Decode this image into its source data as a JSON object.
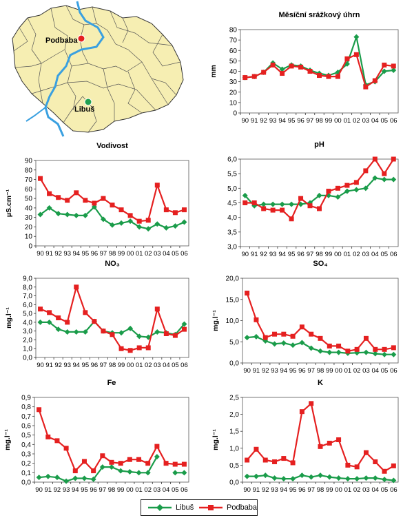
{
  "map": {
    "labels": [
      {
        "key": "podbaba",
        "text": "Podbaba",
        "color": "#e52020"
      },
      {
        "key": "libus",
        "text": "Libuš",
        "color": "#20a050"
      }
    ],
    "region_fill": "#f6eeb2",
    "river_color": "#3aa0e0"
  },
  "legend": {
    "items": [
      {
        "label": "Libuš",
        "color": "#1a9c4a",
        "marker": "diamond"
      },
      {
        "label": "Podbaba",
        "color": "#e52020",
        "marker": "square"
      }
    ]
  },
  "chart_data": [
    {
      "id": "srazky",
      "type": "line",
      "title": "Měsíční srážkový úhrn",
      "ylabel": "mm",
      "ylim": [
        0,
        80
      ],
      "yticks": [
        "0",
        "10",
        "20",
        "30",
        "40",
        "50",
        "60",
        "70",
        "80"
      ],
      "x": [
        "90",
        "91",
        "92",
        "93",
        "94",
        "95",
        "96",
        "97",
        "98",
        "99",
        "00",
        "01",
        "02",
        "03",
        "04",
        "05",
        "06"
      ],
      "series": [
        {
          "name": "Libuš",
          "values": [
            34,
            35,
            39,
            48,
            42,
            46,
            45,
            41,
            38,
            36,
            39,
            47,
            73,
            27,
            30,
            40,
            41
          ]
        },
        {
          "name": "Podbaba",
          "values": [
            34,
            35,
            39,
            46,
            38,
            45,
            44,
            40,
            36,
            35,
            35,
            52,
            56,
            25,
            31,
            46,
            45
          ]
        }
      ]
    },
    {
      "id": "vodivost",
      "type": "line",
      "title": "Vodivost",
      "ylabel": "µS.cm⁻¹",
      "ylim": [
        0,
        90
      ],
      "yticks": [
        "0",
        "10",
        "20",
        "30",
        "40",
        "50",
        "60",
        "70",
        "80",
        "90"
      ],
      "x": [
        "90",
        "91",
        "92",
        "93",
        "94",
        "95",
        "96",
        "97",
        "98",
        "99",
        "00",
        "01",
        "02",
        "03",
        "04",
        "05",
        "06"
      ],
      "series": [
        {
          "name": "Libuš",
          "values": [
            33,
            40,
            34,
            33,
            32,
            32,
            41,
            28,
            22,
            24,
            26,
            20,
            18,
            23,
            19,
            21,
            25
          ]
        },
        {
          "name": "Podbaba",
          "values": [
            71,
            55,
            51,
            48,
            56,
            48,
            45,
            50,
            43,
            38,
            32,
            26,
            27,
            64,
            38,
            35,
            38
          ]
        }
      ]
    },
    {
      "id": "ph",
      "type": "line",
      "title": "pH",
      "ylabel": "",
      "ylim": [
        3,
        6
      ],
      "yticks": [
        "3,0",
        "3,5",
        "4,0",
        "4,5",
        "5,0",
        "5,5",
        "6,0"
      ],
      "x": [
        "90",
        "91",
        "92",
        "93",
        "94",
        "95",
        "96",
        "97",
        "98",
        "99",
        "00",
        "01",
        "02",
        "03",
        "04",
        "05",
        "06"
      ],
      "series": [
        {
          "name": "Libuš",
          "values": [
            4.75,
            4.4,
            4.45,
            4.45,
            4.45,
            4.45,
            4.45,
            4.5,
            4.75,
            4.75,
            4.7,
            4.9,
            4.95,
            5.0,
            5.35,
            5.3,
            5.3
          ]
        },
        {
          "name": "Podbaba",
          "values": [
            4.5,
            4.5,
            4.3,
            4.25,
            4.25,
            3.95,
            4.65,
            4.4,
            4.3,
            4.9,
            5.0,
            5.1,
            5.2,
            5.6,
            6.0,
            5.5,
            6.0
          ]
        }
      ]
    },
    {
      "id": "no3",
      "type": "line",
      "title": "NO₃",
      "ylabel": "mg.l⁻¹",
      "ylim": [
        0,
        9
      ],
      "yticks": [
        "0,0",
        "1,0",
        "2,0",
        "3,0",
        "4,0",
        "5,0",
        "6,0",
        "7,0",
        "8,0",
        "9,0"
      ],
      "x": [
        "90",
        "91",
        "92",
        "93",
        "94",
        "95",
        "96",
        "97",
        "98",
        "99",
        "00",
        "01",
        "02",
        "03",
        "04",
        "05",
        "06"
      ],
      "series": [
        {
          "name": "Libuš",
          "values": [
            4.0,
            4.0,
            3.2,
            2.9,
            2.9,
            2.9,
            4.1,
            3.0,
            2.8,
            2.8,
            3.3,
            2.4,
            2.3,
            2.9,
            2.8,
            2.6,
            3.8
          ]
        },
        {
          "name": "Podbaba",
          "values": [
            5.5,
            5.1,
            4.5,
            4.0,
            8.0,
            5.1,
            4.1,
            3.0,
            2.6,
            1.0,
            0.8,
            1.1,
            1.1,
            5.5,
            2.7,
            2.5,
            3.2
          ]
        }
      ]
    },
    {
      "id": "so4",
      "type": "line",
      "title": "SO₄",
      "ylabel": "mg.l⁻¹",
      "ylim": [
        0,
        20
      ],
      "yticks": [
        "0,0",
        "5,0",
        "10,0",
        "15,0",
        "20,0"
      ],
      "x": [
        "90",
        "91",
        "92",
        "93",
        "94",
        "95",
        "96",
        "97",
        "98",
        "99",
        "00",
        "01",
        "02",
        "03",
        "04",
        "05",
        "06"
      ],
      "series": [
        {
          "name": "Libuš",
          "values": [
            6.0,
            6.2,
            5.2,
            4.5,
            4.7,
            4.2,
            4.8,
            3.5,
            2.8,
            2.5,
            2.5,
            2.3,
            2.4,
            2.5,
            2.2,
            2.0,
            2.0
          ]
        },
        {
          "name": "Podbaba",
          "values": [
            16.5,
            10.2,
            6.0,
            6.8,
            6.8,
            6.3,
            8.5,
            6.8,
            5.8,
            4.0,
            4.0,
            2.8,
            3.2,
            5.8,
            3.2,
            3.2,
            3.6
          ]
        }
      ]
    },
    {
      "id": "fe",
      "type": "line",
      "title": "Fe",
      "ylabel": "mg.l⁻¹",
      "ylim": [
        0,
        0.9
      ],
      "yticks": [
        "0,0",
        "0,1",
        "0,2",
        "0,3",
        "0,4",
        "0,5",
        "0,6",
        "0,7",
        "0,8",
        "0,9"
      ],
      "x": [
        "90",
        "91",
        "92",
        "93",
        "94",
        "95",
        "96",
        "97",
        "98",
        "99",
        "00",
        "01",
        "02",
        "03",
        "04",
        "05",
        "06"
      ],
      "series": [
        {
          "name": "Libuš",
          "values": [
            0.05,
            0.06,
            0.05,
            0.01,
            0.04,
            0.04,
            0.03,
            0.16,
            0.16,
            0.12,
            0.11,
            0.1,
            0.1,
            0.27,
            null,
            0.1,
            0.1
          ]
        },
        {
          "name": "Podbaba",
          "values": [
            0.77,
            0.48,
            0.44,
            0.36,
            0.12,
            0.22,
            0.12,
            0.28,
            0.21,
            0.2,
            0.24,
            0.24,
            0.2,
            0.38,
            0.2,
            0.19,
            0.19
          ]
        }
      ]
    },
    {
      "id": "k",
      "type": "line",
      "title": "K",
      "ylabel": "mg.l⁻¹",
      "ylim": [
        0,
        2.5
      ],
      "yticks": [
        "0,0",
        "0,5",
        "1,0",
        "1,5",
        "2,0",
        "2,5"
      ],
      "x": [
        "90",
        "91",
        "92",
        "93",
        "94",
        "95",
        "96",
        "97",
        "98",
        "99",
        "00",
        "01",
        "02",
        "03",
        "04",
        "05",
        "06"
      ],
      "series": [
        {
          "name": "Libuš",
          "values": [
            0.17,
            0.17,
            0.2,
            0.12,
            0.1,
            0.1,
            0.2,
            0.15,
            0.2,
            0.15,
            0.12,
            0.1,
            0.1,
            0.12,
            0.12,
            0.08,
            0.05
          ]
        },
        {
          "name": "Podbaba",
          "values": [
            0.65,
            0.97,
            0.65,
            0.6,
            0.7,
            0.57,
            2.08,
            2.32,
            1.05,
            1.15,
            1.25,
            0.5,
            0.45,
            0.87,
            0.6,
            0.32,
            0.48
          ]
        }
      ]
    }
  ]
}
